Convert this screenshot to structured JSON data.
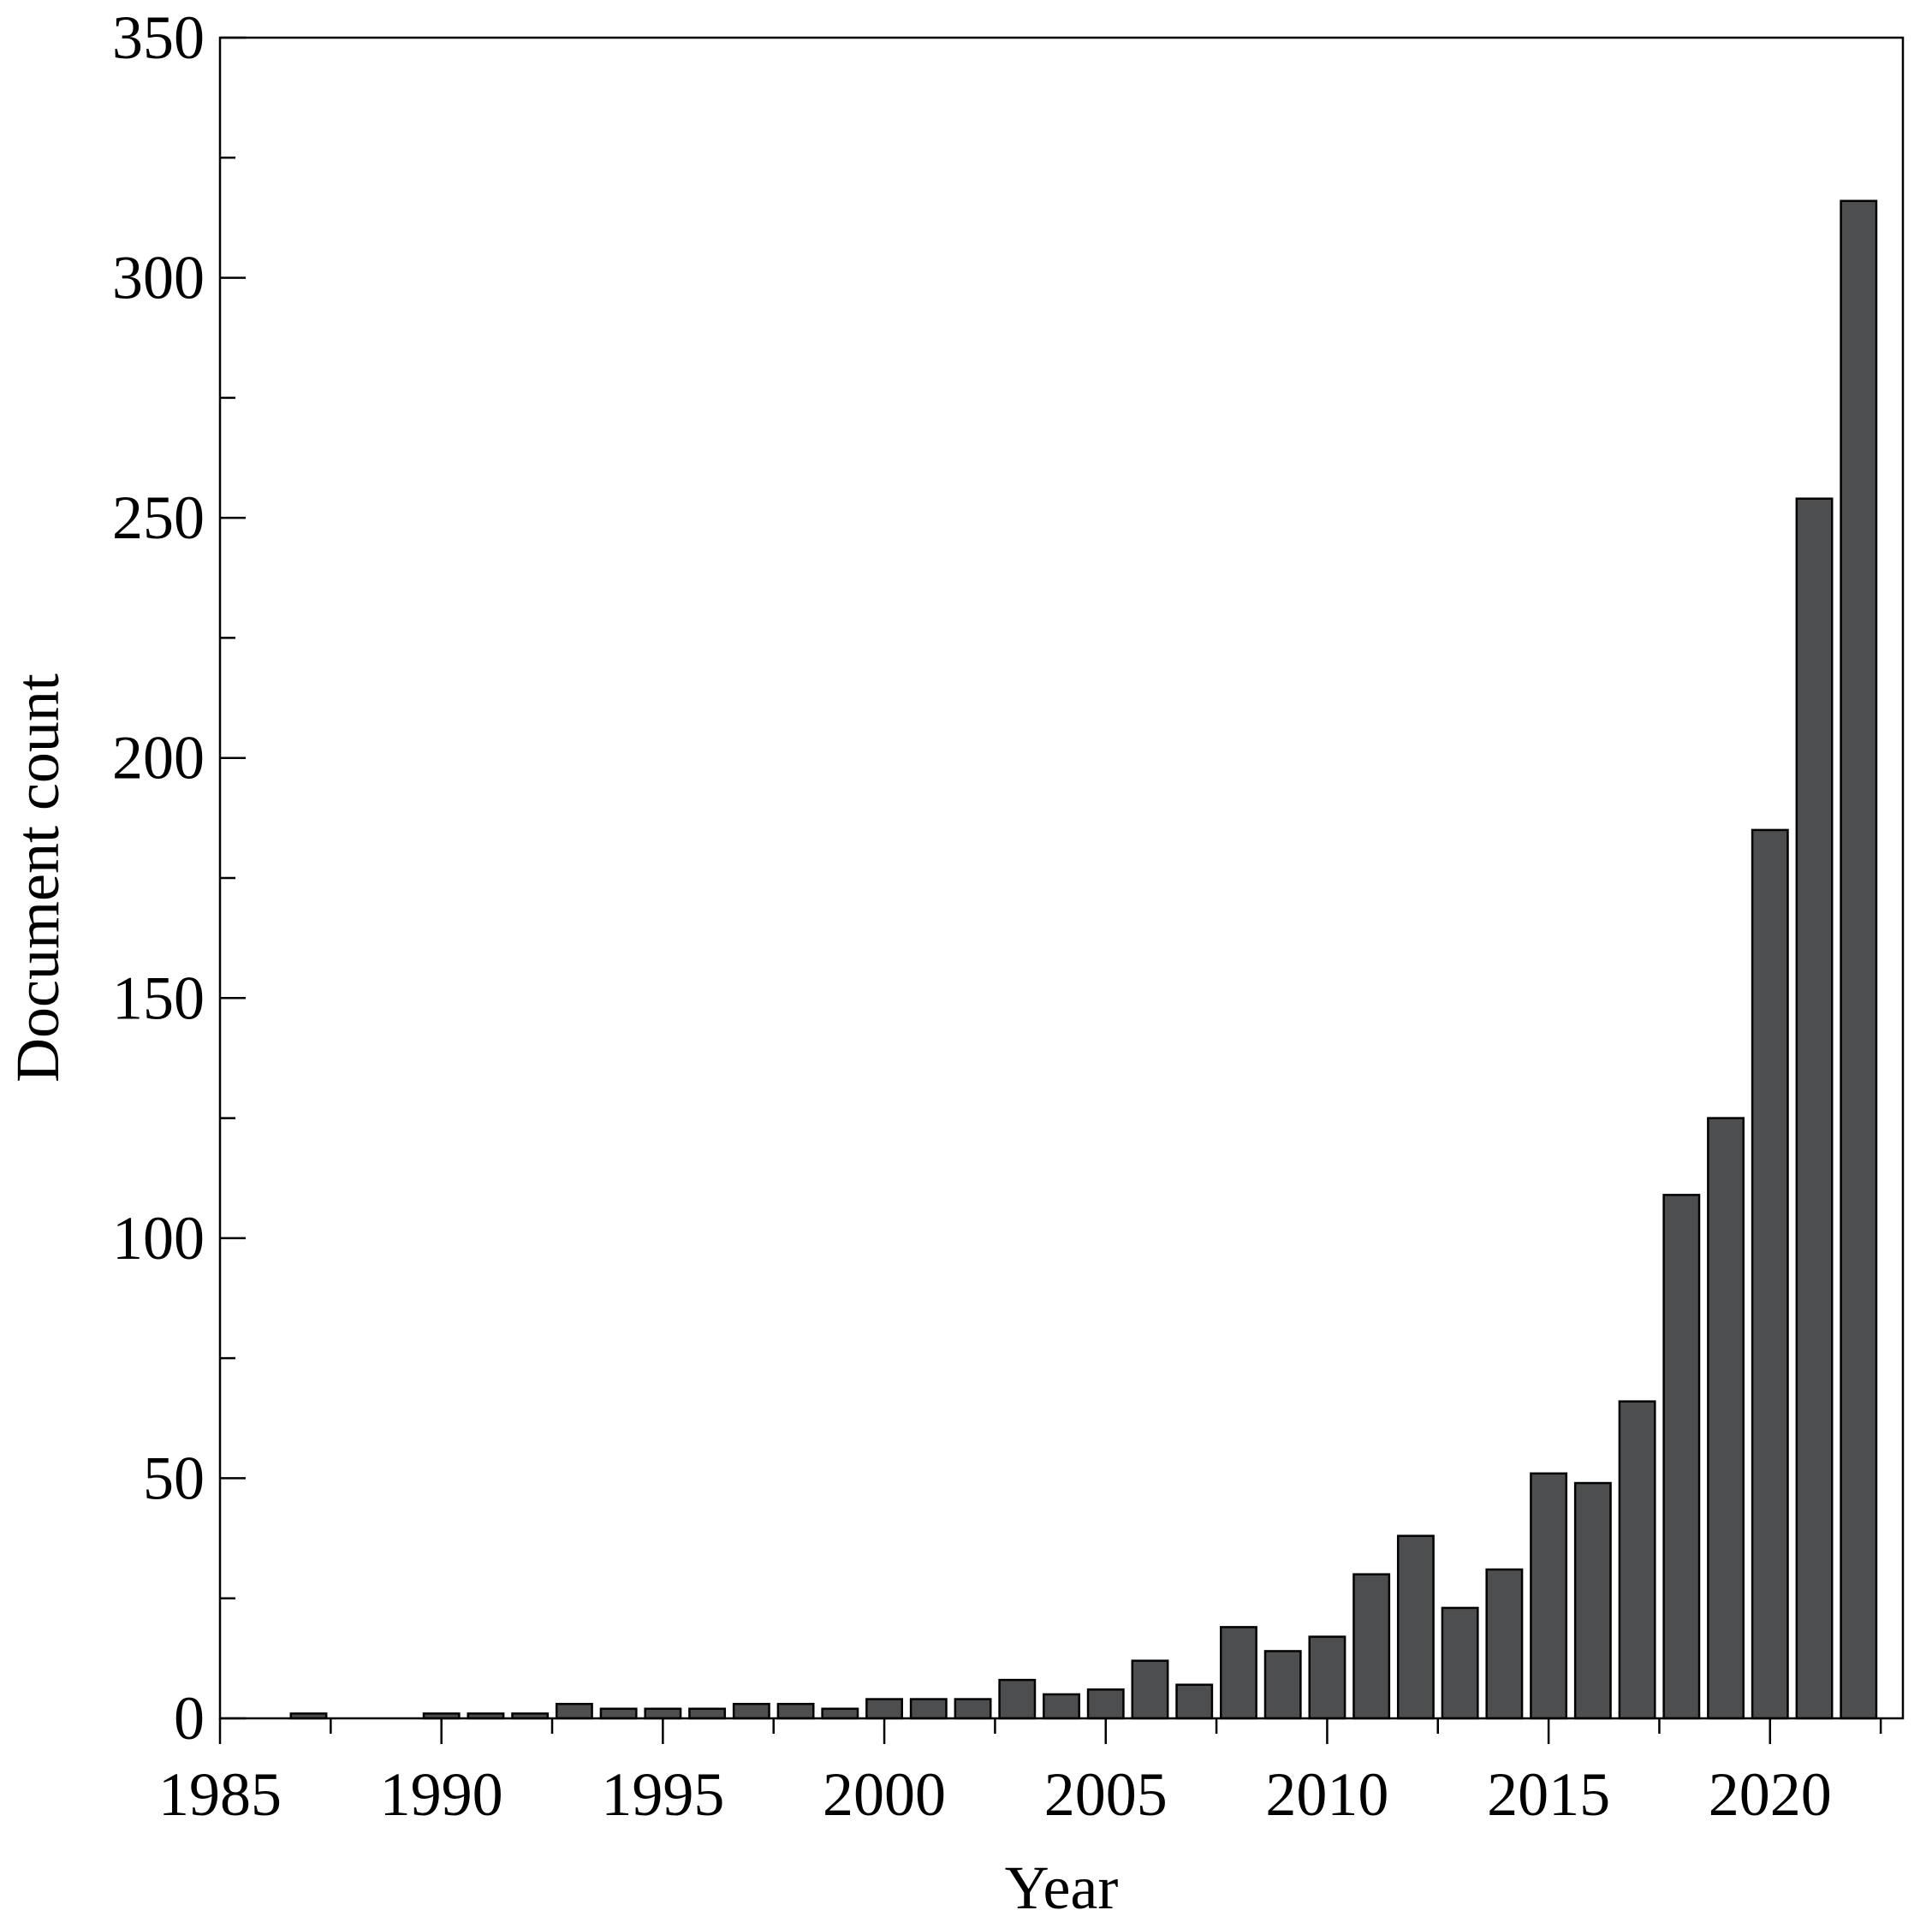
{
  "chart_data": {
    "type": "bar",
    "title": "",
    "xlabel": "Year",
    "ylabel": "Document count",
    "xlim": [
      1985,
      2023
    ],
    "ylim": [
      0,
      350
    ],
    "x_ticks": [
      1985,
      1990,
      1995,
      2000,
      2005,
      2010,
      2015,
      2020
    ],
    "y_ticks": [
      0,
      50,
      100,
      150,
      200,
      250,
      300,
      350
    ],
    "grid": false,
    "bar_color": "#4d4e50",
    "categories": [
      1987,
      1990,
      1991,
      1992,
      1993,
      1994,
      1995,
      1996,
      1997,
      1998,
      1999,
      2000,
      2001,
      2002,
      2003,
      2004,
      2005,
      2006,
      2007,
      2008,
      2009,
      2010,
      2011,
      2012,
      2013,
      2014,
      2015,
      2016,
      2017,
      2018,
      2019,
      2020,
      2021,
      2022
    ],
    "values": [
      1,
      1,
      1,
      1,
      3,
      2,
      2,
      2,
      3,
      3,
      2,
      4,
      4,
      4,
      8,
      5,
      6,
      12,
      7,
      19,
      14,
      17,
      30,
      38,
      23,
      31,
      51,
      49,
      66,
      109,
      125,
      185,
      254,
      316
    ]
  }
}
